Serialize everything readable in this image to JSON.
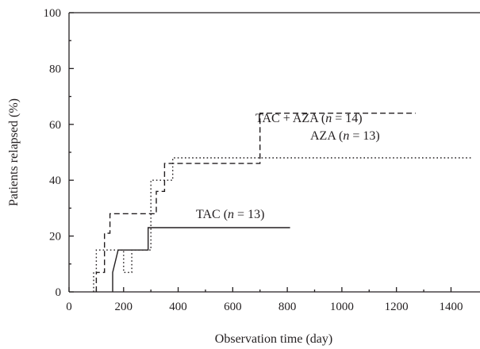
{
  "chart_data": {
    "type": "line",
    "subtype": "step",
    "xlabel": "Observation time (day)",
    "ylabel": "Patients relapsed (%)",
    "xlim": [
      0,
      1500
    ],
    "ylim": [
      0,
      100
    ],
    "xticks": [
      0,
      200,
      400,
      600,
      800,
      1000,
      1200,
      1400
    ],
    "yticks": [
      0,
      20,
      40,
      60,
      80,
      100
    ],
    "grid": false,
    "series": [
      {
        "name": "TAC (n = 13)",
        "style": "solid",
        "color": "#231f20",
        "x": [
          160,
          160,
          180,
          290,
          290,
          810
        ],
        "y": [
          0,
          7,
          15,
          15,
          23,
          23
        ],
        "label_parts": [
          "TAC (",
          "n",
          " = 13)"
        ]
      },
      {
        "name": "TAC + AZA (n = 14)",
        "style": "dashed",
        "color": "#231f20",
        "x": [
          100,
          100,
          130,
          130,
          150,
          150,
          320,
          320,
          350,
          350,
          410,
          410,
          700,
          700,
          1270
        ],
        "y": [
          0,
          7,
          7,
          21,
          21,
          28,
          28,
          36,
          36,
          46,
          46,
          46,
          46,
          64,
          64
        ],
        "label_parts": [
          "TAC + AZA (",
          "n",
          " = 14)"
        ]
      },
      {
        "name": "AZA (n = 13)",
        "style": "dotted",
        "color": "#231f20",
        "x": [
          90,
          90,
          100,
          100,
          200,
          200,
          230,
          230,
          300,
          300,
          380,
          380,
          1480
        ],
        "y": [
          0,
          7,
          7,
          15,
          15,
          7,
          7,
          15,
          15,
          40,
          40,
          48,
          48
        ],
        "label_parts": [
          "AZA (",
          "n",
          " = 13)"
        ]
      }
    ]
  }
}
